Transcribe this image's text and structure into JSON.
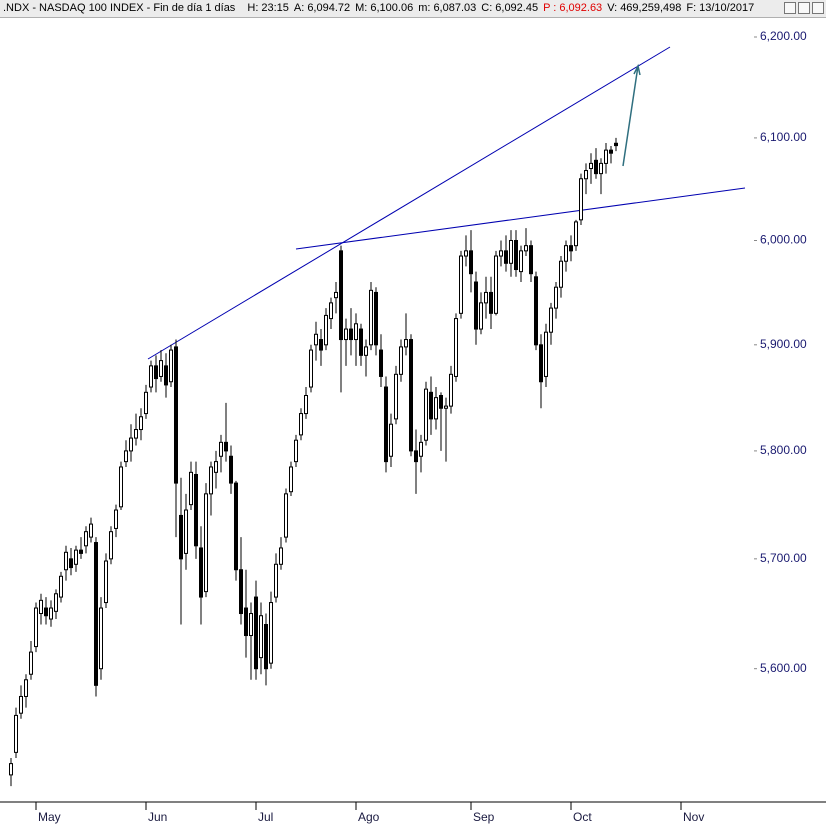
{
  "chart_data": {
    "type": "candlestick",
    "title": ".NDX - NASDAQ 100 INDEX - Fin de día 1 días",
    "info": [
      {
        "label": "H:",
        "value": "23:15",
        "color": "#000000"
      },
      {
        "label": "A:",
        "value": "6,094.72",
        "color": "#000000"
      },
      {
        "label": "M:",
        "value": "6,100.06",
        "color": "#000000"
      },
      {
        "label": "m:",
        "value": "6,087.03",
        "color": "#000000"
      },
      {
        "label": "C:",
        "value": "6,092.45",
        "color": "#000000"
      },
      {
        "label": "P :",
        "value": "6,092.63",
        "color": "#e00000"
      },
      {
        "label": "V:",
        "value": "469,259,498",
        "color": "#000000"
      },
      {
        "label": "F:",
        "value": "13/10/2017",
        "color": "#000000"
      }
    ],
    "log_scale": true,
    "grid": false,
    "up_color": "#ffffff",
    "down_color": "#000000",
    "ylim": [
      5481,
      6219
    ],
    "yticks": [
      {
        "value": 5600,
        "label": "5,600.00"
      },
      {
        "value": 5700,
        "label": "5,700.00"
      },
      {
        "value": 5800,
        "label": "5,800.00"
      },
      {
        "value": 5900,
        "label": "5,900.00"
      },
      {
        "value": 6000,
        "label": "6,000.00"
      },
      {
        "value": 6100,
        "label": "6,100.00"
      },
      {
        "value": 6200,
        "label": "6,200.00"
      }
    ],
    "categories": [
      null,
      null,
      null,
      null,
      null,
      "May",
      null,
      null,
      null,
      null,
      null,
      null,
      null,
      null,
      null,
      null,
      null,
      null,
      null,
      null,
      null,
      null,
      null,
      null,
      null,
      null,
      null,
      "Jun",
      null,
      null,
      null,
      null,
      null,
      null,
      null,
      null,
      null,
      null,
      null,
      null,
      null,
      null,
      null,
      null,
      null,
      null,
      null,
      null,
      null,
      "Jul",
      null,
      null,
      null,
      null,
      null,
      null,
      null,
      null,
      null,
      null,
      null,
      null,
      null,
      null,
      null,
      null,
      null,
      null,
      null,
      "Ago",
      null,
      null,
      null,
      null,
      null,
      null,
      null,
      null,
      null,
      null,
      null,
      null,
      null,
      null,
      null,
      null,
      null,
      null,
      null,
      null,
      null,
      null,
      "Sep",
      null,
      null,
      null,
      null,
      null,
      null,
      null,
      null,
      null,
      null,
      null,
      null,
      null,
      null,
      null,
      null,
      null,
      null,
      null,
      "Oct",
      null,
      null,
      null,
      null,
      null,
      null,
      null,
      null,
      null,
      null,
      null,
      null,
      null,
      null,
      null,
      null,
      null,
      null,
      null,
      null,
      null,
      "Nov",
      null,
      null,
      null,
      null,
      null,
      null,
      null,
      null,
      null,
      null,
      null,
      null
    ],
    "open": [
      5505,
      5525,
      5560,
      5575,
      5595,
      5620,
      5650,
      5655,
      5645,
      5652,
      5665,
      5690,
      5700,
      5695,
      5708,
      5712,
      5720,
      5715,
      5600,
      5660,
      5700,
      5728,
      5748,
      5790,
      5800,
      5812,
      5820,
      5835,
      5860,
      5880,
      5870,
      5880,
      5865,
      5898,
      5740,
      5705,
      5750,
      5778,
      5710,
      5670,
      5760,
      5780,
      5795,
      5808,
      5795,
      5770,
      5690,
      5655,
      5630,
      5665,
      5610,
      5640,
      5605,
      5665,
      5695,
      5720,
      5762,
      5790,
      5815,
      5835,
      5860,
      5900,
      5905,
      5900,
      5925,
      5945,
      5990,
      5905,
      5915,
      5905,
      5915,
      5890,
      5900,
      5950,
      5895,
      5860,
      5795,
      5830,
      5872,
      5898,
      5905,
      5800,
      5795,
      5810,
      5855,
      5830,
      5852,
      5840,
      5842,
      5870,
      5930,
      5985,
      5990,
      5960,
      5915,
      5940,
      5950,
      5930,
      5985,
      5990,
      5978,
      6000,
      5970,
      5990,
      5995,
      5965,
      5900,
      5870,
      5912,
      5935,
      5955,
      5980,
      5995,
      5995,
      6020,
      6060,
      6070,
      6078,
      6065,
      6075,
      6088,
      6094.72,
      null,
      null,
      null,
      null,
      null,
      null,
      null,
      null,
      null,
      null,
      null,
      null,
      null,
      null,
      null,
      null,
      null,
      null,
      null,
      null,
      null,
      null,
      null,
      null,
      null
    ],
    "high": [
      5520,
      5565,
      5585,
      5595,
      5625,
      5660,
      5668,
      5665,
      5662,
      5672,
      5688,
      5712,
      5710,
      5712,
      5720,
      5730,
      5738,
      5720,
      5665,
      5705,
      5730,
      5750,
      5790,
      5810,
      5825,
      5835,
      5840,
      5862,
      5885,
      5890,
      5895,
      5892,
      5900,
      5905,
      5775,
      5760,
      5790,
      5790,
      5730,
      5770,
      5790,
      5800,
      5815,
      5845,
      5805,
      5772,
      5720,
      5690,
      5660,
      5680,
      5660,
      5650,
      5670,
      5705,
      5720,
      5765,
      5790,
      5815,
      5840,
      5860,
      5900,
      5922,
      5915,
      5935,
      5945,
      5960,
      5995,
      5925,
      5935,
      5930,
      5920,
      5905,
      5960,
      5955,
      5910,
      5870,
      5835,
      5880,
      5905,
      5930,
      5910,
      5820,
      5815,
      5865,
      5870,
      5860,
      5855,
      5850,
      5880,
      5930,
      5990,
      6005,
      6010,
      5970,
      5950,
      5965,
      5965,
      5990,
      6000,
      6005,
      6010,
      6010,
      5995,
      6012,
      6000,
      5970,
      5910,
      5920,
      5940,
      5960,
      5985,
      6000,
      6005,
      6020,
      6065,
      6075,
      6085,
      6090,
      6080,
      6095,
      6092,
      6100.06,
      null,
      null,
      null,
      null,
      null,
      null,
      null,
      null,
      null,
      null,
      null,
      null,
      null,
      null,
      null,
      null,
      null,
      null,
      null,
      null,
      null,
      null,
      null,
      null,
      null
    ],
    "low": [
      5495,
      5520,
      5555,
      5565,
      5590,
      5615,
      5640,
      5640,
      5638,
      5645,
      5660,
      5680,
      5685,
      5688,
      5700,
      5705,
      5715,
      5575,
      5590,
      5655,
      5695,
      5720,
      5745,
      5785,
      5790,
      5805,
      5810,
      5830,
      5855,
      5855,
      5865,
      5850,
      5860,
      5720,
      5640,
      5690,
      5745,
      5700,
      5640,
      5665,
      5740,
      5765,
      5780,
      5790,
      5760,
      5680,
      5640,
      5610,
      5590,
      5590,
      5595,
      5585,
      5600,
      5660,
      5690,
      5715,
      5758,
      5785,
      5810,
      5830,
      5855,
      5885,
      5880,
      5895,
      5915,
      5930,
      5855,
      5880,
      5890,
      5880,
      5880,
      5870,
      5895,
      5890,
      5860,
      5780,
      5785,
      5825,
      5865,
      5890,
      5795,
      5760,
      5780,
      5805,
      5815,
      5820,
      5800,
      5790,
      5835,
      5865,
      5925,
      5975,
      5950,
      5900,
      5910,
      5925,
      5915,
      5928,
      5975,
      5970,
      5965,
      5965,
      5960,
      5985,
      5960,
      5895,
      5840,
      5860,
      5900,
      5925,
      5945,
      5970,
      5980,
      5990,
      6015,
      6045,
      6055,
      6060,
      6045,
      6065,
      6075,
      6087.03,
      null,
      null,
      null,
      null,
      null,
      null,
      null,
      null,
      null,
      null,
      null,
      null,
      null,
      null,
      null,
      null,
      null,
      null,
      null,
      null,
      null,
      null,
      null,
      null,
      null
    ],
    "close": [
      5515,
      5558,
      5575,
      5590,
      5615,
      5655,
      5662,
      5648,
      5655,
      5668,
      5684,
      5706,
      5692,
      5708,
      5705,
      5725,
      5732,
      5585,
      5655,
      5698,
      5725,
      5745,
      5785,
      5800,
      5812,
      5820,
      5832,
      5855,
      5880,
      5868,
      5885,
      5862,
      5895,
      5770,
      5700,
      5745,
      5780,
      5712,
      5665,
      5760,
      5785,
      5790,
      5808,
      5800,
      5770,
      5690,
      5650,
      5630,
      5650,
      5600,
      5648,
      5600,
      5660,
      5695,
      5710,
      5760,
      5785,
      5810,
      5835,
      5852,
      5895,
      5910,
      5895,
      5928,
      5940,
      5950,
      5905,
      5915,
      5905,
      5920,
      5890,
      5898,
      5952,
      5900,
      5870,
      5790,
      5825,
      5872,
      5898,
      5905,
      5800,
      5790,
      5808,
      5858,
      5830,
      5850,
      5840,
      5842,
      5872,
      5925,
      5985,
      5990,
      5968,
      5915,
      5940,
      5950,
      5930,
      5985,
      5990,
      5978,
      6000,
      5972,
      5990,
      5995,
      5968,
      5900,
      5865,
      5912,
      5935,
      5955,
      5980,
      5995,
      5990,
      6018,
      6060,
      6068,
      6075,
      6065,
      6075,
      6088,
      6085,
      6092.45,
      null,
      null,
      null,
      null,
      null,
      null,
      null,
      null,
      null,
      null,
      null,
      null,
      null,
      null,
      null,
      null,
      null,
      null,
      null,
      null,
      null,
      null,
      null,
      null,
      null
    ]
  }
}
